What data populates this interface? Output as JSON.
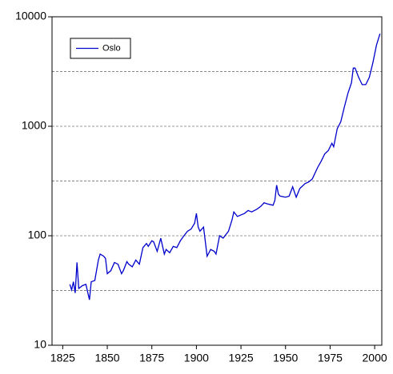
{
  "chart_data": {
    "type": "line",
    "log_y": true,
    "x": [
      1829,
      1830,
      1831,
      1832,
      1833,
      1834,
      1836,
      1838,
      1840,
      1841,
      1843,
      1845,
      1846,
      1848,
      1849,
      1850,
      1852,
      1854,
      1856,
      1858,
      1859,
      1861,
      1862,
      1864,
      1866,
      1868,
      1870,
      1872,
      1873,
      1875,
      1876,
      1878,
      1880,
      1882,
      1883,
      1885,
      1887,
      1889,
      1891,
      1893,
      1895,
      1897,
      1899,
      1900,
      1901,
      1902,
      1904,
      1906,
      1908,
      1910,
      1911,
      1913,
      1915,
      1918,
      1920,
      1921,
      1923,
      1925,
      1927,
      1929,
      1931,
      1934,
      1936,
      1938,
      1940,
      1943,
      1944,
      1945,
      1946,
      1947,
      1950,
      1952,
      1954,
      1955,
      1956,
      1958,
      1961,
      1963,
      1965,
      1968,
      1970,
      1972,
      1974,
      1976,
      1977,
      1979,
      1981,
      1983,
      1985,
      1987,
      1988,
      1989,
      1991,
      1993,
      1995,
      1997,
      1999,
      2001,
      2003
    ],
    "series": [
      {
        "name": "Oslo",
        "color": "#0000cc",
        "values": [
          36,
          32,
          38,
          30,
          57,
          33,
          35,
          36,
          26,
          38,
          39,
          60,
          68,
          65,
          62,
          45,
          48,
          57,
          55,
          45,
          48,
          58,
          55,
          52,
          60,
          55,
          78,
          85,
          80,
          90,
          88,
          72,
          95,
          68,
          75,
          70,
          80,
          78,
          90,
          100,
          110,
          115,
          130,
          160,
          120,
          110,
          120,
          65,
          75,
          72,
          68,
          100,
          95,
          110,
          140,
          165,
          150,
          155,
          160,
          170,
          165,
          175,
          185,
          200,
          195,
          190,
          210,
          290,
          240,
          230,
          225,
          230,
          280,
          250,
          225,
          270,
          300,
          310,
          330,
          420,
          480,
          560,
          600,
          700,
          650,
          950,
          1100,
          1500,
          2000,
          2500,
          3400,
          3400,
          2800,
          2400,
          2400,
          2800,
          3800,
          5500,
          7000
        ]
      }
    ],
    "xlim": [
      1819,
      2004
    ],
    "xticks": [
      1825,
      1850,
      1875,
      1900,
      1925,
      1950,
      1975,
      2000
    ],
    "ylim": [
      10,
      10000
    ],
    "yticks": [
      10,
      100,
      1000,
      10000
    ],
    "ygrid": [
      31.6,
      100,
      316,
      1000,
      3160
    ],
    "legend": "top-left"
  }
}
